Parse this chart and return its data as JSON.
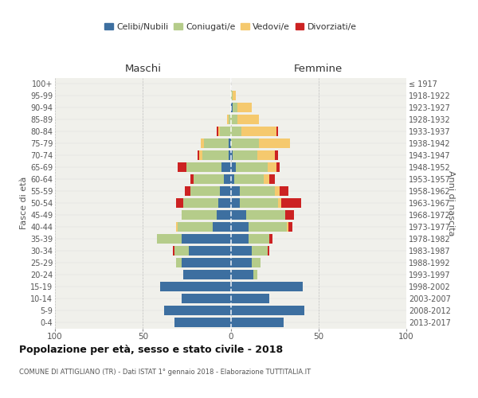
{
  "age_groups": [
    "0-4",
    "5-9",
    "10-14",
    "15-19",
    "20-24",
    "25-29",
    "30-34",
    "35-39",
    "40-44",
    "45-49",
    "50-54",
    "55-59",
    "60-64",
    "65-69",
    "70-74",
    "75-79",
    "80-84",
    "85-89",
    "90-94",
    "95-99",
    "100+"
  ],
  "birth_years": [
    "2013-2017",
    "2008-2012",
    "2003-2007",
    "1998-2002",
    "1993-1997",
    "1988-1992",
    "1983-1987",
    "1978-1982",
    "1973-1977",
    "1968-1972",
    "1963-1967",
    "1958-1962",
    "1953-1957",
    "1948-1952",
    "1943-1947",
    "1938-1942",
    "1933-1937",
    "1928-1932",
    "1923-1927",
    "1918-1922",
    "≤ 1917"
  ],
  "maschi": {
    "celibi": [
      32,
      38,
      28,
      40,
      27,
      28,
      24,
      28,
      10,
      8,
      7,
      6,
      4,
      5,
      1,
      1,
      0,
      0,
      0,
      0,
      0
    ],
    "coniugati": [
      0,
      0,
      0,
      0,
      0,
      3,
      8,
      14,
      20,
      20,
      20,
      17,
      17,
      20,
      15,
      14,
      6,
      1,
      0,
      0,
      0
    ],
    "vedovi": [
      0,
      0,
      0,
      0,
      0,
      0,
      0,
      0,
      1,
      0,
      0,
      0,
      0,
      0,
      2,
      2,
      1,
      1,
      0,
      0,
      0
    ],
    "divorziati": [
      0,
      0,
      0,
      0,
      0,
      0,
      1,
      0,
      0,
      0,
      4,
      3,
      2,
      5,
      1,
      0,
      1,
      0,
      0,
      0,
      0
    ]
  },
  "femmine": {
    "nubili": [
      30,
      42,
      22,
      41,
      13,
      12,
      12,
      10,
      10,
      9,
      5,
      5,
      2,
      3,
      1,
      0,
      0,
      0,
      1,
      0,
      0
    ],
    "coniugate": [
      0,
      0,
      0,
      0,
      2,
      5,
      9,
      12,
      22,
      22,
      22,
      20,
      17,
      18,
      14,
      16,
      6,
      4,
      3,
      1,
      0
    ],
    "vedove": [
      0,
      0,
      0,
      0,
      0,
      0,
      0,
      0,
      1,
      0,
      2,
      3,
      3,
      5,
      10,
      18,
      20,
      12,
      8,
      2,
      0
    ],
    "divorziate": [
      0,
      0,
      0,
      0,
      0,
      0,
      1,
      2,
      2,
      5,
      11,
      5,
      3,
      2,
      2,
      0,
      1,
      0,
      0,
      0,
      0
    ]
  },
  "colors": {
    "celibi": "#3d6fa0",
    "coniugati": "#b5cc8a",
    "vedovi": "#f5c96e",
    "divorziati": "#cc2222"
  },
  "xlim": 100,
  "title": "Popolazione per età, sesso e stato civile - 2018",
  "subtitle": "COMUNE DI ATTIGLIANO (TR) - Dati ISTAT 1° gennaio 2018 - Elaborazione TUTTITALIA.IT",
  "ylabel_left": "Fasce di età",
  "ylabel_right": "Anni di nascita",
  "xlabel_left": "Maschi",
  "xlabel_right": "Femmine",
  "legend_labels": [
    "Celibi/Nubili",
    "Coniugati/e",
    "Vedovi/e",
    "Divorziati/e"
  ],
  "bg_color": "#f0f0eb",
  "grid_color": "#cccccc"
}
